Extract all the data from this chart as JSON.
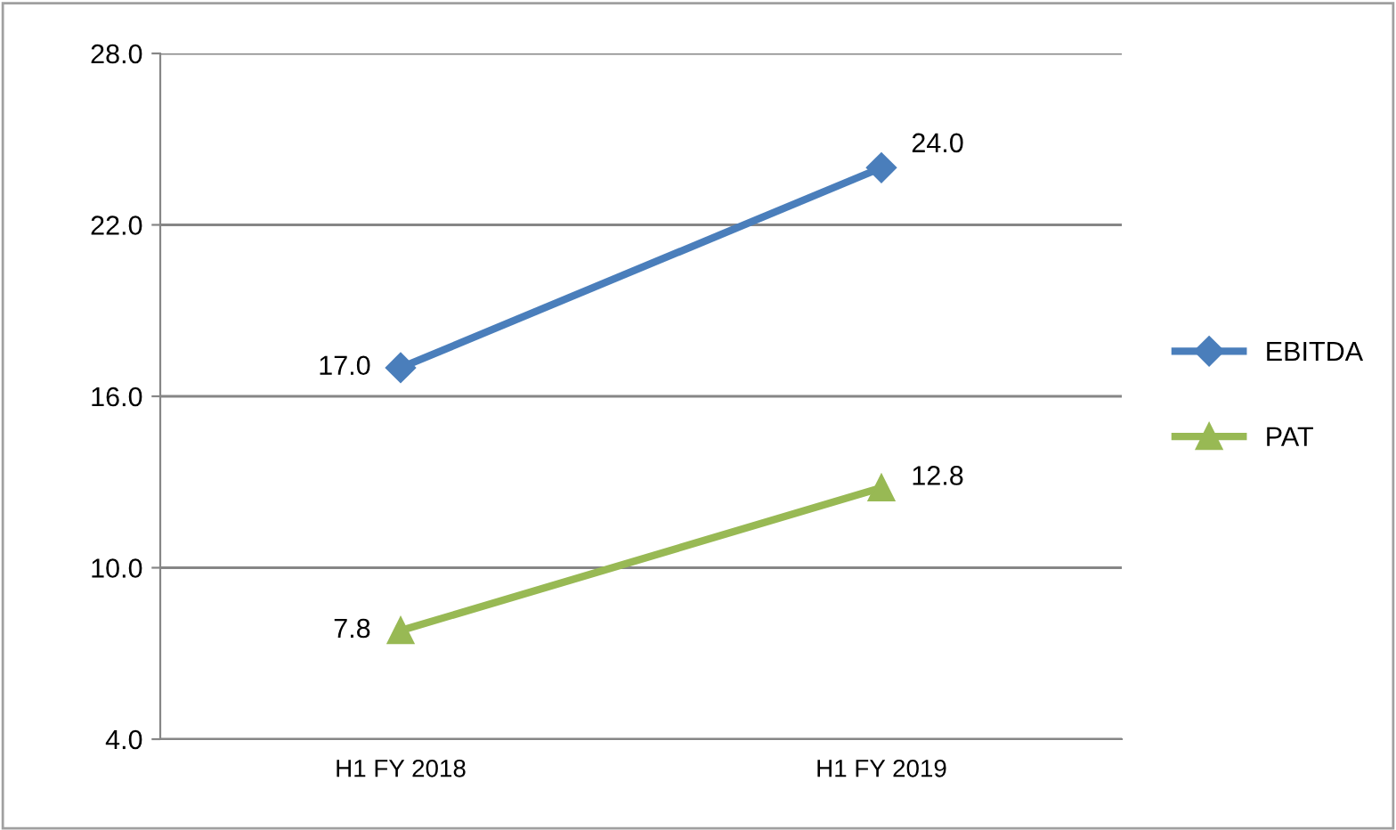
{
  "chart_data": {
    "type": "line",
    "categories": [
      "H1 FY 2018",
      "H1 FY 2019"
    ],
    "series": [
      {
        "name": "EBITDA",
        "color": "#4a7ebb",
        "values": [
          17.0,
          24.0
        ],
        "marker": "diamond",
        "value_labels": [
          "17.0",
          "24.0"
        ]
      },
      {
        "name": "PAT",
        "color": "#98b954",
        "values": [
          7.8,
          12.8
        ],
        "marker": "triangle",
        "value_labels": [
          "7.8",
          "12.8"
        ]
      }
    ],
    "ylim": [
      4,
      28
    ],
    "yticks": [
      {
        "value": 4,
        "label": "4.0"
      },
      {
        "value": 10,
        "label": "10.0"
      },
      {
        "value": 16,
        "label": "16.0"
      },
      {
        "value": 22,
        "label": "22.0"
      },
      {
        "value": 28,
        "label": "28.0"
      }
    ],
    "grid": "y",
    "legend": "right",
    "line_style": "solid"
  }
}
